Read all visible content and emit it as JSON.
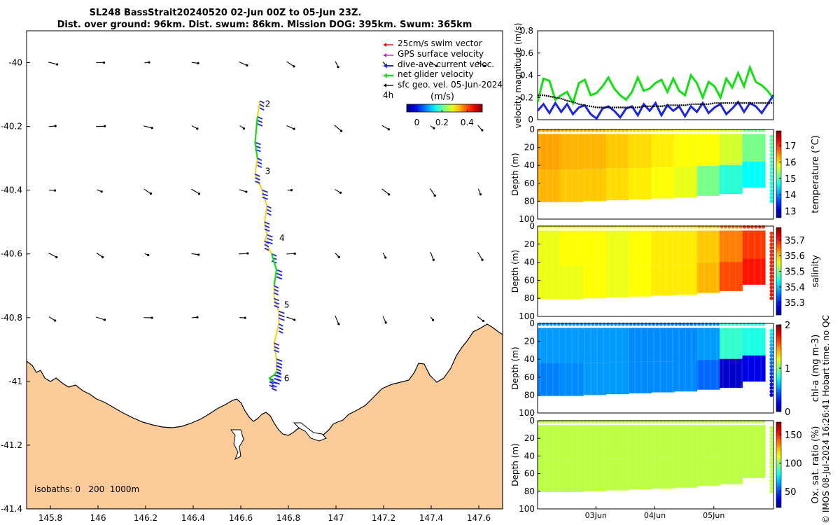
{
  "title": {
    "line1": "SL248 BassStrait20240520 02-Jun 00Z to 05-Jun 23Z.",
    "line2": "Dist. over ground: 96km. Dist. swum: 86km. Mission DOG: 395km. Swum: 365km"
  },
  "legend": {
    "swim": "25cm/s swim vector",
    "gps": "GPS surface velocity",
    "dive": "dive-ave current veloc.",
    "net": "net glider velocity",
    "sfc": "sfc geo. vel. 05-Jun-2024",
    "interval": "4h",
    "units": "(m/s)",
    "colorbar_ticks": [
      "0",
      "0.2",
      "0.4"
    ]
  },
  "isobaths_label": "isobaths: 0   200  1000m",
  "footer_credit": "© IMOS 08-Jul-2024 16:26:41 Hobart time. no QC",
  "colors": {
    "land": "#fbcb9a",
    "green": "#12e012",
    "blue": "#1c24e6",
    "black": "#000000"
  },
  "chart_data": [
    {
      "type": "scatter",
      "name": "map",
      "xlabel": "",
      "ylabel": "",
      "xlim": [
        145.7,
        147.7
      ],
      "ylim": [
        -41.4,
        -39.9
      ],
      "x_ticks": [
        "145.8",
        "146",
        "146.2",
        "146.4",
        "146.6",
        "146.8",
        "147",
        "147.2",
        "147.4",
        "147.6"
      ],
      "y_ticks": [
        "-40",
        "-40.2",
        "-40.4",
        "-40.6",
        "-40.8",
        "-41",
        "-41.2",
        "-41.4"
      ],
      "track": {
        "lon": [
          146.68,
          146.67,
          146.66,
          146.67,
          146.66,
          146.69,
          146.71,
          146.7,
          146.71,
          146.7,
          146.73,
          146.75,
          146.74,
          146.74,
          146.76,
          146.76,
          146.74,
          146.75,
          146.75,
          146.75,
          146.74,
          146.72,
          146.73
        ],
        "lat": [
          -40.12,
          -40.17,
          -40.25,
          -40.3,
          -40.35,
          -40.4,
          -40.45,
          -40.5,
          -40.54,
          -40.56,
          -40.6,
          -40.65,
          -40.7,
          -40.74,
          -40.78,
          -40.82,
          -40.88,
          -40.93,
          -40.95,
          -40.97,
          -40.98,
          -40.99,
          -41.0
        ]
      },
      "waypoints": [
        {
          "label": "2",
          "lon": 146.69,
          "lat": -40.13
        },
        {
          "label": "3",
          "lon": 146.69,
          "lat": -40.34
        },
        {
          "label": "4",
          "lon": 146.75,
          "lat": -40.55
        },
        {
          "label": "5",
          "lon": 146.77,
          "lat": -40.76
        },
        {
          "label": "6",
          "lon": 146.77,
          "lat": -40.99
        }
      ]
    },
    {
      "type": "line",
      "name": "velocity",
      "xlabel": "",
      "ylabel": "velocity magnitude (m/s)",
      "xlim": [
        0,
        4
      ],
      "ylim": [
        0,
        0.8
      ],
      "y_ticks": [
        "0",
        "0.2",
        "0.4",
        "0.6",
        "0.8"
      ],
      "x": [
        0,
        0.1,
        0.2,
        0.3,
        0.4,
        0.5,
        0.6,
        0.7,
        0.8,
        0.9,
        1.0,
        1.1,
        1.2,
        1.3,
        1.4,
        1.5,
        1.6,
        1.7,
        1.8,
        1.9,
        2.0,
        2.1,
        2.2,
        2.3,
        2.4,
        2.5,
        2.6,
        2.7,
        2.8,
        2.9,
        3.0,
        3.1,
        3.2,
        3.3,
        3.4,
        3.5,
        3.6,
        3.7,
        3.8,
        3.9,
        4.0
      ],
      "series": [
        {
          "name": "net glider velocity",
          "color": "#12e012",
          "values": [
            0.16,
            0.37,
            0.35,
            0.18,
            0.22,
            0.25,
            0.15,
            0.33,
            0.36,
            0.22,
            0.24,
            0.3,
            0.38,
            0.28,
            0.22,
            0.18,
            0.25,
            0.38,
            0.26,
            0.28,
            0.33,
            0.36,
            0.25,
            0.37,
            0.26,
            0.22,
            0.4,
            0.33,
            0.2,
            0.34,
            0.3,
            0.2,
            0.37,
            0.29,
            0.42,
            0.3,
            0.47,
            0.34,
            0.31,
            0.26,
            0.19
          ]
        },
        {
          "name": "dive-ave current veloc.",
          "color": "#1c24e6",
          "values": [
            0.08,
            0.14,
            0.06,
            0.15,
            0.07,
            0.14,
            0.05,
            0.11,
            0.13,
            0.05,
            0.01,
            0.1,
            0.12,
            0.08,
            0.02,
            0.1,
            0.12,
            0.04,
            0.14,
            0.08,
            0.15,
            0.04,
            0.13,
            0.08,
            0.12,
            0.03,
            0.12,
            0.07,
            0.15,
            0.06,
            0.11,
            0.14,
            0.05,
            0.1,
            0.16,
            0.07,
            0.15,
            0.12,
            0.06,
            0.14,
            0.22
          ]
        },
        {
          "name": "sfc geo. vel.",
          "color": "#000000",
          "values": [
            0.22,
            0.22,
            0.21,
            0.2,
            0.19,
            0.17,
            0.16,
            0.14,
            0.13,
            0.12,
            0.11,
            0.11,
            0.11,
            0.11,
            0.11,
            0.11,
            0.11,
            0.11,
            0.12,
            0.12,
            0.12,
            0.12,
            0.13,
            0.13,
            0.13,
            0.13,
            0.14,
            0.14,
            0.14,
            0.14,
            0.15,
            0.15,
            0.15,
            0.15,
            0.15,
            0.15,
            0.15,
            0.15,
            0.15,
            0.15,
            0.15
          ]
        }
      ]
    },
    {
      "type": "heatmap",
      "name": "temperature",
      "ylabel": "Depth (m)",
      "clabel": "temperature (°C)",
      "ylim": [
        100,
        0
      ],
      "y_ticks": [
        "0",
        "20",
        "40",
        "60",
        "80",
        "100"
      ],
      "c_ticks": [
        "13",
        "14",
        "15",
        "16",
        "17"
      ],
      "clim": [
        12.6,
        17.9
      ],
      "values": [
        16.4,
        16.3,
        16.3,
        16.2,
        16.1,
        16.0,
        15.9,
        15.9,
        15.7,
        15.2
      ],
      "bottom_values": [
        16.3,
        16.2,
        16.2,
        16.1,
        16.0,
        15.9,
        15.8,
        15.2,
        14.8,
        14.6
      ],
      "max_depth": [
        81,
        81,
        80,
        79,
        78,
        77,
        76,
        74,
        72,
        65
      ]
    },
    {
      "type": "heatmap",
      "name": "salinity",
      "ylabel": "Depth (m)",
      "clabel": "salinity",
      "ylim": [
        100,
        0
      ],
      "y_ticks": [
        "0",
        "20",
        "40",
        "60",
        "80",
        "100"
      ],
      "c_ticks": [
        "35.3",
        "35.4",
        "35.5",
        "35.6",
        "35.7"
      ],
      "clim": [
        35.22,
        35.78
      ],
      "values": [
        35.56,
        35.57,
        35.57,
        35.56,
        35.57,
        35.58,
        35.58,
        35.6,
        35.64,
        35.68
      ],
      "bottom_values": [
        35.56,
        35.56,
        35.57,
        35.56,
        35.57,
        35.58,
        35.58,
        35.61,
        35.67,
        35.7
      ],
      "max_depth": [
        81,
        81,
        80,
        79,
        78,
        77,
        76,
        74,
        72,
        65
      ]
    },
    {
      "type": "heatmap",
      "name": "chl-a",
      "ylabel": "Depth (m)",
      "clabel": "chl-a (mg m-3)",
      "ylim": [
        100,
        0
      ],
      "y_ticks": [
        "0",
        "20",
        "40",
        "60",
        "80",
        "100"
      ],
      "c_ticks": [
        "0",
        "1",
        "2"
      ],
      "clim": [
        0,
        2
      ],
      "values": [
        0.55,
        0.55,
        0.55,
        0.55,
        0.52,
        0.52,
        0.52,
        0.55,
        0.85,
        0.8
      ],
      "bottom_values": [
        0.5,
        0.52,
        0.55,
        0.55,
        0.52,
        0.52,
        0.52,
        0.45,
        0.15,
        0.2
      ],
      "max_depth": [
        81,
        81,
        80,
        79,
        78,
        77,
        76,
        74,
        72,
        65
      ]
    },
    {
      "type": "heatmap",
      "name": "oxygen",
      "ylabel": "Depth (m)",
      "clabel": "Ox. sat. ratio (%)",
      "ylim": [
        100,
        0
      ],
      "y_ticks": [
        "0",
        "20",
        "40",
        "60",
        "80",
        "100"
      ],
      "c_ticks": [
        "50",
        "100",
        "150"
      ],
      "clim": [
        22,
        172
      ],
      "values": [
        106,
        106,
        106,
        106,
        106,
        106,
        106,
        106,
        106,
        106
      ],
      "bottom_values": [
        106,
        106,
        106,
        106,
        106,
        106,
        106,
        106,
        106,
        106
      ],
      "max_depth": [
        81,
        81,
        80,
        79,
        78,
        77,
        76,
        74,
        72,
        65
      ],
      "x_ticks": [
        "03Jun",
        "04Jun",
        "05Jun"
      ]
    }
  ]
}
